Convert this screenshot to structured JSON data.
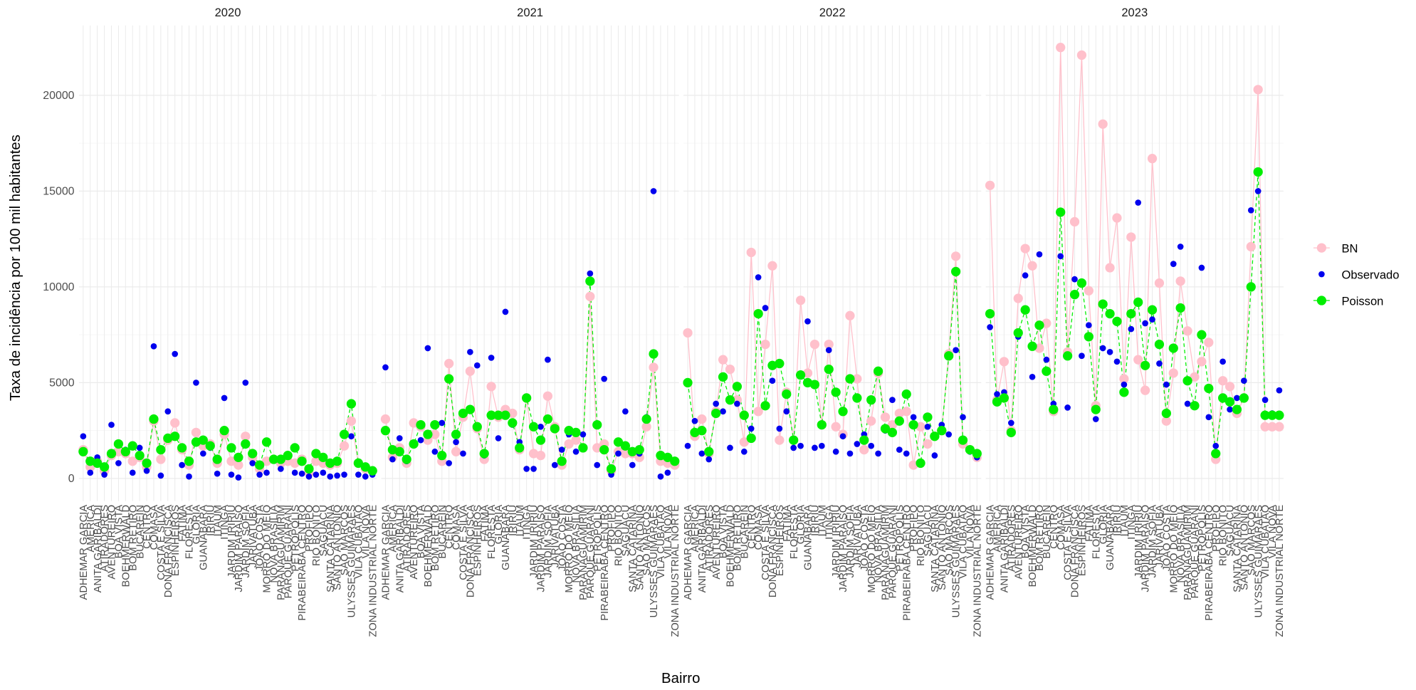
{
  "x_label": "Bairro",
  "y_label": "Taxa de incidência por 100 mil habitantes",
  "legend": "right",
  "categories": [
    "ADHEMAR GARCIA",
    "AMERICA",
    "ANITA GARIBALDI",
    "ATIRADORES",
    "AVENTUREIRO",
    "BOA VISTA",
    "BOEHMERWALD",
    "BOM RETIRO",
    "BUCAREIN",
    "CENTRO",
    "COMASA",
    "COSTA E SILVA",
    "DONA FRANCISCA",
    "ESPINHEIROS",
    "FATIMA",
    "FLORESTA",
    "GLORIA",
    "GUANABARA",
    "IRIRIU",
    "ITAUM",
    "ITINGA",
    "JARDIM IRIRIU",
    "JARDIM PARAISO",
    "JARDIM SOFIA",
    "JARIVATUBA",
    "JOAO COSTA",
    "MORRO DO MEIO",
    "NOVA BRASILIA",
    "PARANAGUAMIRIM",
    "PARQUE GUARANI",
    "PETROPOLIS",
    "PIRABEIRABA CENTRO",
    "PROFIPO",
    "RIO BONITO",
    "SAGUACU",
    "SANTA CATARINA",
    "SANTO ANTONIO",
    "SAO MARCOS",
    "ULYSSES GUIMARAES",
    "VILA CUBATAO",
    "VILA NOVA",
    "ZONA INDUSTRIAL NORTE"
  ],
  "ylim": [
    -1185,
    23650
  ],
  "yticks": [
    0,
    5000,
    10000,
    15000,
    20000
  ],
  "grid": true,
  "chart_data": [
    {
      "type": "line",
      "title": "2020",
      "series": [
        {
          "name": "BN",
          "color": "#ffc0cb",
          "line": "solid",
          "values": [
            1500,
            600,
            900,
            400,
            1200,
            1400,
            1300,
            900,
            1100,
            600,
            3000,
            1000,
            2000,
            2900,
            1500,
            700,
            2400,
            1700,
            1800,
            800,
            2300,
            900,
            700,
            2200,
            1100,
            500,
            900,
            1000,
            800,
            900,
            800,
            1000,
            300,
            900,
            800,
            700,
            800,
            1700,
            3000,
            800,
            500,
            400
          ]
        },
        {
          "name": "Observado",
          "color": "#0000ee",
          "line": "none",
          "values": [
            2200,
            300,
            1100,
            200,
            2800,
            800,
            1500,
            300,
            1600,
            400,
            6900,
            150,
            3500,
            6500,
            700,
            100,
            5000,
            1300,
            1600,
            250,
            4200,
            200,
            50,
            5000,
            800,
            200,
            300,
            1000,
            500,
            1200,
            300,
            250,
            100,
            200,
            300,
            100,
            150,
            200,
            2200,
            200,
            100,
            200
          ]
        },
        {
          "name": "Poisson",
          "color": "#00ee00",
          "line": "dashed",
          "values": [
            1400,
            900,
            800,
            600,
            1300,
            1800,
            1400,
            1700,
            1200,
            800,
            3100,
            1500,
            2100,
            2200,
            1600,
            900,
            1900,
            2000,
            1700,
            1000,
            2500,
            1600,
            1100,
            1800,
            1300,
            700,
            1900,
            1000,
            1000,
            1200,
            1600,
            900,
            500,
            1300,
            1100,
            800,
            900,
            2300,
            3900,
            800,
            600,
            400
          ]
        }
      ]
    },
    {
      "type": "line",
      "title": "2021",
      "series": [
        {
          "name": "BN",
          "color": "#ffc0cb",
          "line": "solid",
          "values": [
            3100,
            1100,
            1600,
            800,
            2900,
            2700,
            2000,
            2300,
            900,
            6000,
            1400,
            3200,
            5600,
            2600,
            1000,
            4800,
            3200,
            3600,
            3400,
            1500,
            4200,
            1300,
            1200,
            4300,
            2700,
            700,
            1800,
            2000,
            1600,
            9500,
            1600,
            1800,
            400,
            1400,
            1300,
            1300,
            1100,
            2700,
            5800,
            900,
            800,
            700
          ]
        },
        {
          "name": "Observado",
          "color": "#0000ee",
          "line": "none",
          "values": [
            5800,
            1000,
            2100,
            900,
            1800,
            2000,
            6800,
            1400,
            2900,
            800,
            1900,
            1300,
            6600,
            5900,
            1200,
            6300,
            2100,
            8700,
            2800,
            1900,
            500,
            500,
            2700,
            6200,
            700,
            1500,
            2300,
            1400,
            2300,
            10700,
            700,
            5200,
            200,
            1300,
            3500,
            700,
            1300,
            3200,
            15000,
            100,
            300,
            900
          ]
        },
        {
          "name": "Poisson",
          "color": "#00ee00",
          "line": "dashed",
          "values": [
            2500,
            1500,
            1400,
            1000,
            1800,
            2800,
            2300,
            2800,
            1200,
            5200,
            2300,
            3400,
            3600,
            2700,
            1300,
            3300,
            3300,
            3300,
            2900,
            1600,
            4200,
            2700,
            2000,
            3100,
            2600,
            900,
            2500,
            2400,
            1600,
            10300,
            2800,
            1500,
            500,
            1900,
            1700,
            1400,
            1500,
            3100,
            6500,
            1200,
            1100,
            900
          ]
        }
      ]
    },
    {
      "type": "line",
      "title": "2022",
      "series": [
        {
          "name": "BN",
          "color": "#ffc0cb",
          "line": "solid",
          "values": [
            7600,
            2200,
            3100,
            1300,
            3500,
            6200,
            5700,
            4100,
            1900,
            11800,
            3500,
            7000,
            11100,
            2000,
            4500,
            2000,
            9300,
            5500,
            7000,
            2800,
            7000,
            2700,
            2300,
            8500,
            5200,
            1500,
            3000,
            5500,
            3200,
            2800,
            3400,
            3500,
            700,
            2700,
            1800,
            2200,
            2500,
            6500,
            11600,
            1800,
            1500,
            1100
          ]
        },
        {
          "name": "Observado",
          "color": "#0000ee",
          "line": "none",
          "values": [
            1700,
            3000,
            1300,
            1000,
            3900,
            3500,
            1600,
            3900,
            1400,
            2600,
            10500,
            8900,
            5100,
            2600,
            3500,
            1600,
            1700,
            8200,
            1600,
            1700,
            6700,
            1400,
            2200,
            1300,
            1800,
            2300,
            1700,
            1300,
            2500,
            4100,
            1500,
            1300,
            3200,
            800,
            2700,
            1200,
            2800,
            2300,
            6700,
            3200,
            1400,
            1100
          ]
        },
        {
          "name": "Poisson",
          "color": "#00ee00",
          "line": "dashed",
          "values": [
            5000,
            2400,
            2500,
            1400,
            3400,
            5300,
            4100,
            4800,
            3300,
            2100,
            8600,
            3800,
            5900,
            6000,
            4400,
            2000,
            5400,
            5000,
            4900,
            2800,
            5700,
            4500,
            3500,
            5200,
            4200,
            2000,
            4100,
            5600,
            2600,
            2400,
            3000,
            4400,
            2800,
            800,
            3200,
            2200,
            2500,
            6400,
            10800,
            2000,
            1500,
            1300
          ]
        }
      ]
    },
    {
      "type": "line",
      "title": "2023",
      "series": [
        {
          "name": "BN",
          "color": "#ffc0cb",
          "line": "solid",
          "values": [
            15300,
            4100,
            6100,
            2500,
            9400,
            12000,
            11100,
            6800,
            8100,
            3500,
            22500,
            6600,
            13400,
            22100,
            9800,
            3800,
            18500,
            11000,
            13600,
            5200,
            12600,
            6200,
            4600,
            16700,
            10200,
            3000,
            5500,
            10300,
            7700,
            5300,
            6100,
            7100,
            1000,
            5100,
            4800,
            3400,
            4200,
            12100,
            20300,
            2700,
            2700,
            2700
          ]
        },
        {
          "name": "Observado",
          "color": "#0000ee",
          "line": "none",
          "values": [
            7900,
            4400,
            4500,
            2900,
            7400,
            10600,
            5300,
            11700,
            6200,
            3900,
            11600,
            3700,
            10400,
            6400,
            8000,
            3100,
            6800,
            6600,
            6100,
            4900,
            7800,
            14400,
            8100,
            8300,
            6000,
            4900,
            11200,
            12100,
            3900,
            3800,
            11000,
            3200,
            1700,
            6100,
            3600,
            4200,
            5100,
            14000,
            15000,
            4100,
            3400,
            4600
          ]
        },
        {
          "name": "Poisson",
          "color": "#00ee00",
          "line": "dashed",
          "values": [
            8600,
            4000,
            4200,
            2400,
            7600,
            8800,
            6900,
            8000,
            5600,
            3600,
            13900,
            6400,
            9600,
            10200,
            7400,
            3600,
            9100,
            8600,
            8200,
            4500,
            8600,
            9200,
            5900,
            8800,
            7000,
            3400,
            6800,
            8900,
            5100,
            3800,
            7500,
            4700,
            1300,
            4200,
            4000,
            3600,
            4200,
            10000,
            16000,
            3300,
            3300,
            3300
          ]
        }
      ]
    }
  ]
}
